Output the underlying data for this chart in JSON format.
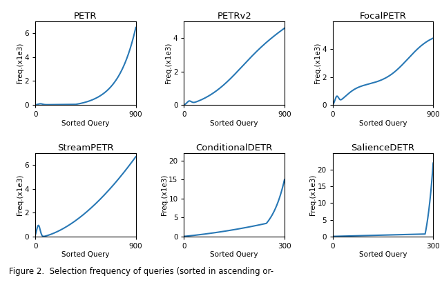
{
  "subplots": [
    {
      "title": "PETR",
      "xlabel": "Sorted Query",
      "ylabel": "Freq.(x1e3)",
      "xlim": [
        0,
        900
      ],
      "ylim": [
        0,
        7
      ],
      "yticks": [
        0,
        2,
        4,
        6
      ],
      "xticks": [
        0,
        900
      ],
      "n_points": 900,
      "curve_type": "petr"
    },
    {
      "title": "PETRv2",
      "xlabel": "Sorted Query",
      "ylabel": "Freq.(x1e3)",
      "xlim": [
        0,
        900
      ],
      "ylim": [
        0,
        5
      ],
      "yticks": [
        0,
        2,
        4
      ],
      "xticks": [
        0,
        900
      ],
      "n_points": 900,
      "curve_type": "petrv2"
    },
    {
      "title": "FocalPETR",
      "xlabel": "Sorted Query",
      "ylabel": "Freq.(x1e3)",
      "xlim": [
        0,
        900
      ],
      "ylim": [
        0,
        6
      ],
      "yticks": [
        0,
        2,
        4
      ],
      "xticks": [
        0,
        900
      ],
      "n_points": 900,
      "curve_type": "focalpetr"
    },
    {
      "title": "StreamPETR",
      "xlabel": "Sorted Query",
      "ylabel": "Freq.(x1e3)",
      "xlim": [
        0,
        900
      ],
      "ylim": [
        0,
        7
      ],
      "yticks": [
        0,
        2,
        4,
        6
      ],
      "xticks": [
        0,
        900
      ],
      "n_points": 900,
      "curve_type": "streampetr"
    },
    {
      "title": "ConditionalDETR",
      "xlabel": "Sorted Query",
      "ylabel": "Freq.(x1e3)",
      "xlim": [
        0,
        300
      ],
      "ylim": [
        0,
        22
      ],
      "yticks": [
        0,
        5,
        10,
        15,
        20
      ],
      "xticks": [
        0,
        300
      ],
      "n_points": 300,
      "curve_type": "conditionaldetr"
    },
    {
      "title": "SalienceDETR",
      "xlabel": "Sorted Query",
      "ylabel": "Freq.(x1e3)",
      "xlim": [
        0,
        300
      ],
      "ylim": [
        0,
        25
      ],
      "yticks": [
        0,
        5,
        10,
        15,
        20
      ],
      "xticks": [
        0,
        300
      ],
      "n_points": 300,
      "curve_type": "saliencedetr"
    }
  ],
  "line_color": "#2878b5",
  "line_width": 1.5,
  "figure_caption": "Figure 2.  Selection frequency of queries (sorted in ascending or-",
  "bg_color": "#ffffff"
}
